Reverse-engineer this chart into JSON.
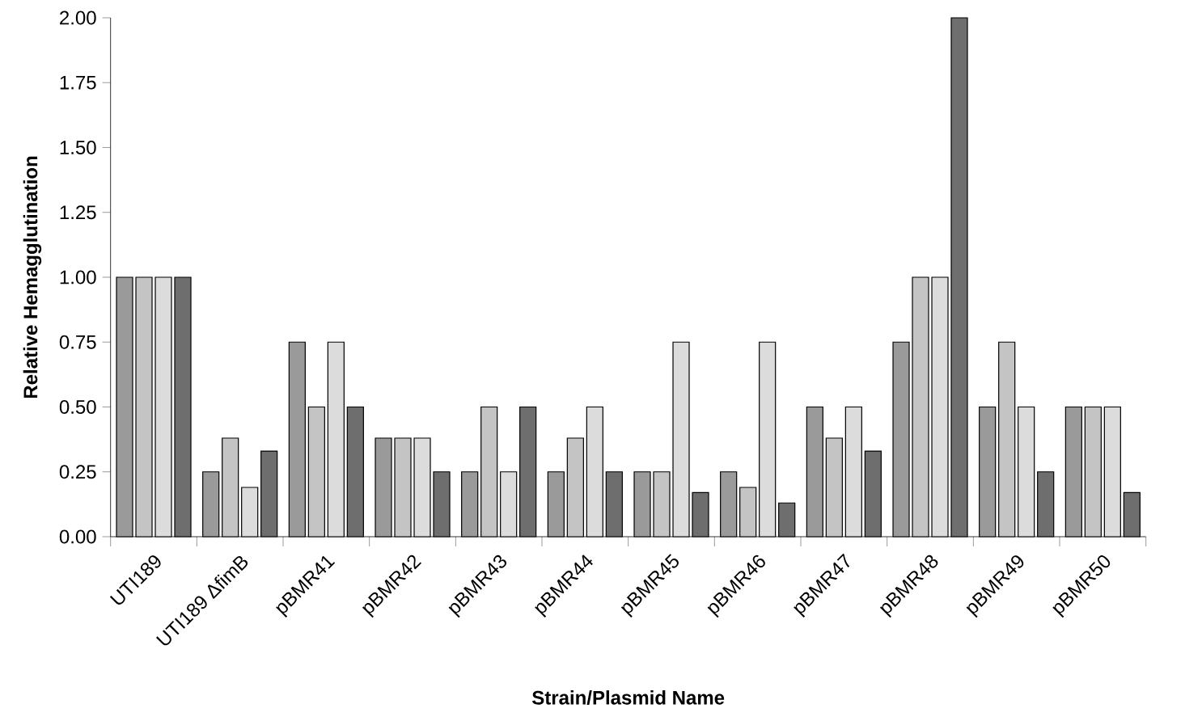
{
  "chart_data": {
    "type": "bar",
    "xlabel": "Strain/Plasmid Name",
    "ylabel": "Relative Hemagglutination",
    "categories": [
      "UTI189",
      "UTI189 ΔfimB",
      "pBMR41",
      "pBMR42",
      "pBMR43",
      "pBMR44",
      "pBMR45",
      "pBMR46",
      "pBMR47",
      "pBMR48",
      "pBMR49",
      "pBMR50"
    ],
    "series": [
      {
        "color": "#9a9a9a",
        "values": [
          1.0,
          0.25,
          0.75,
          0.38,
          0.25,
          0.25,
          0.25,
          0.25,
          0.5,
          0.75,
          0.5,
          0.5
        ]
      },
      {
        "color": "#c4c4c4",
        "values": [
          1.0,
          0.38,
          0.5,
          0.38,
          0.5,
          0.38,
          0.25,
          0.19,
          0.38,
          1.0,
          0.75,
          0.5
        ]
      },
      {
        "color": "#dcdcdc",
        "values": [
          1.0,
          0.19,
          0.75,
          0.38,
          0.25,
          0.5,
          0.75,
          0.75,
          0.5,
          1.0,
          0.5,
          0.5
        ]
      },
      {
        "color": "#6e6e6e",
        "values": [
          1.0,
          0.33,
          0.5,
          0.25,
          0.5,
          0.25,
          0.17,
          0.13,
          0.33,
          2.0,
          0.25,
          0.17
        ]
      }
    ],
    "ylim": [
      0,
      2
    ],
    "yticks": [
      {
        "value": 0,
        "label": "0.00"
      },
      {
        "value": 0.25,
        "label": "0.25"
      },
      {
        "value": 0.5,
        "label": "0.50"
      },
      {
        "value": 0.75,
        "label": "0.75"
      },
      {
        "value": 1,
        "label": "1.00"
      },
      {
        "value": 1.25,
        "label": "1.25"
      },
      {
        "value": 1.5,
        "label": "1.50"
      },
      {
        "value": 1.75,
        "label": "1.75"
      },
      {
        "value": 2,
        "label": "2.00"
      }
    ]
  }
}
